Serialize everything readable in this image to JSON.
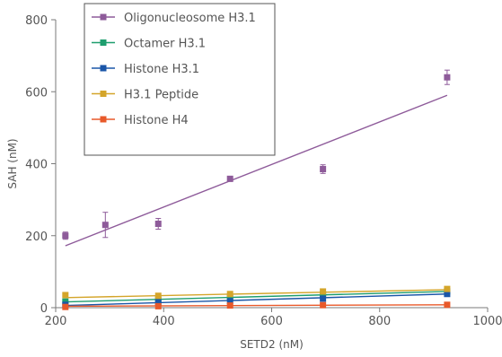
{
  "chart_data": {
    "type": "scatter",
    "xlabel": "SETD2 (nM)",
    "ylabel": "SAH (nM)",
    "xlim": [
      200,
      1000
    ],
    "ylim": [
      0,
      800
    ],
    "xticks": [
      200,
      400,
      600,
      800,
      1000
    ],
    "yticks": [
      0,
      200,
      400,
      600,
      800
    ],
    "grid": false,
    "legend_position": "top-left",
    "series": [
      {
        "name": "Oligonucleosome H3.1",
        "color": "#8e5b9a",
        "x": [
          218,
          292,
          390,
          523,
          695,
          925
        ],
        "y": [
          200,
          230,
          233,
          358,
          385,
          640
        ],
        "error": [
          10,
          35,
          15,
          7,
          12,
          20
        ],
        "fit": [
          [
            218,
            172
          ],
          [
            925,
            590
          ]
        ]
      },
      {
        "name": "Octamer H3.1",
        "color": "#1e9e6e",
        "x": [
          218,
          390,
          523,
          695,
          925
        ],
        "y": [
          17,
          22,
          27,
          37,
          45
        ],
        "error": [
          3,
          3,
          3,
          4,
          6
        ],
        "fit": [
          [
            218,
            16
          ],
          [
            925,
            45
          ]
        ]
      },
      {
        "name": "Histone H3.1",
        "color": "#1a56a8",
        "x": [
          218,
          390,
          523,
          695,
          925
        ],
        "y": [
          8,
          15,
          18,
          25,
          38
        ],
        "error": [
          3,
          3,
          3,
          3,
          5
        ],
        "fit": [
          [
            218,
            6
          ],
          [
            925,
            38
          ]
        ]
      },
      {
        "name": "H3.1 Peptide",
        "color": "#d4a52a",
        "x": [
          218,
          390,
          523,
          695,
          925
        ],
        "y": [
          35,
          33,
          38,
          45,
          52
        ],
        "error": [
          5,
          4,
          4,
          4,
          4
        ],
        "fit": [
          [
            218,
            28
          ],
          [
            925,
            50
          ]
        ]
      },
      {
        "name": "Histone H4",
        "color": "#e8592a",
        "x": [
          218,
          390,
          523,
          695,
          925
        ],
        "y": [
          2,
          4,
          6,
          7,
          8
        ],
        "error": [
          2,
          2,
          2,
          2,
          2
        ],
        "fit": [
          [
            218,
            4
          ],
          [
            925,
            8
          ]
        ]
      }
    ]
  }
}
